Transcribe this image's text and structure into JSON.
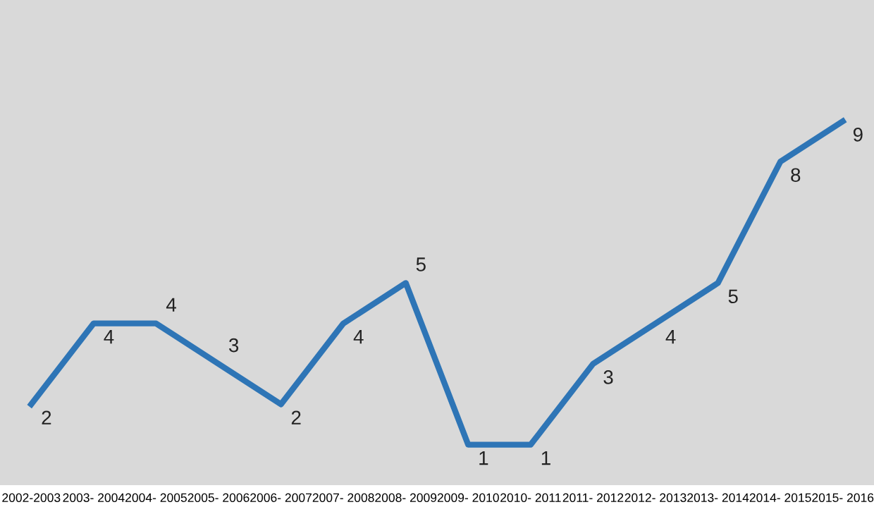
{
  "chart_data": {
    "type": "line",
    "categories": [
      "2002-2003",
      "2003- 2004",
      "2004- 2005",
      "2005- 2006",
      "2006- 2007",
      "2007- 2008",
      "2008- 2009",
      "2009- 2010",
      "2010- 2011",
      "2011- 2012",
      "2012- 2013",
      "2013- 2014",
      "2014- 2015",
      "2015- 2016"
    ],
    "series": [
      {
        "color": "#2e75b6",
        "values": [
          2,
          4,
          4,
          3,
          2,
          4,
          5,
          1,
          1,
          3,
          4,
          5,
          8,
          9
        ]
      }
    ],
    "ylim": [
      0,
      12
    ],
    "tick_labels": "x",
    "data_labels": true,
    "grid": false,
    "legend": false,
    "marker": "none",
    "line_style": "solid"
  }
}
